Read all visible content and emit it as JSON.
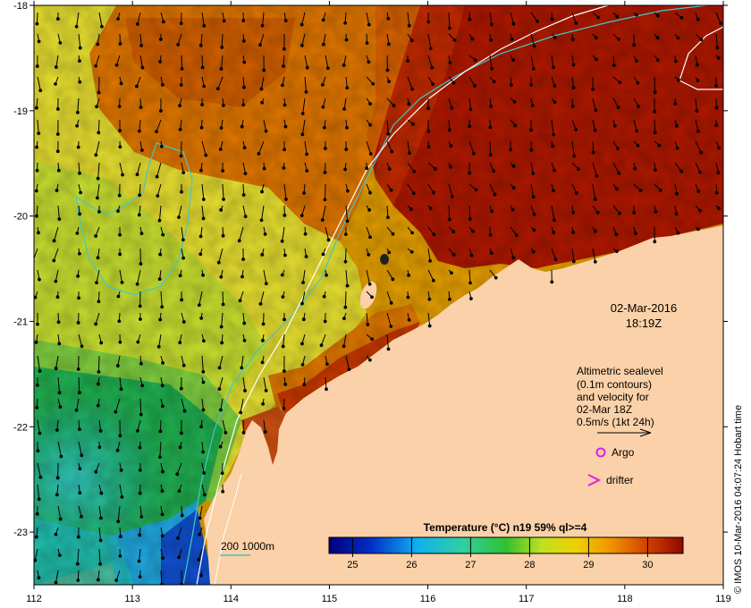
{
  "map": {
    "lon_ticks": [
      "112",
      "113",
      "114",
      "115",
      "116",
      "117",
      "118",
      "119"
    ],
    "lat_ticks": [
      "-18",
      "-19",
      "-20",
      "-21",
      "-22",
      "-23"
    ],
    "extent": {
      "lon": [
        112,
        119
      ],
      "lat": [
        -23.5,
        -18
      ]
    }
  },
  "timestamp": {
    "date": "02-Mar-2016",
    "time": "18:19Z"
  },
  "altimetry_note": {
    "line1": "Altimetric sealevel",
    "line2": "(0.1m contours)",
    "line3": "and velocity for",
    "line4": "02-Mar 18Z",
    "line5": "0.5m/s (1kt 24h)"
  },
  "legend": {
    "argo_label": "Argo",
    "drifter_label": "drifter",
    "argo_color": "#e020e0",
    "drifter_color": "#e020e0"
  },
  "bathymetry": {
    "label": "200  1000m",
    "color": "#40c8c8"
  },
  "colorbar": {
    "title": "Temperature (°C) n19 59% ql>=4",
    "ticks": [
      "25",
      "26",
      "27",
      "28",
      "29",
      "30"
    ],
    "range": [
      24.6,
      30.6
    ]
  },
  "credit": "© IMOS 10-Mar-2016 04:07:24 Hobart time",
  "colors": {
    "land": "#fad1a8",
    "warm": "#a01000",
    "cool": "#10b060"
  }
}
